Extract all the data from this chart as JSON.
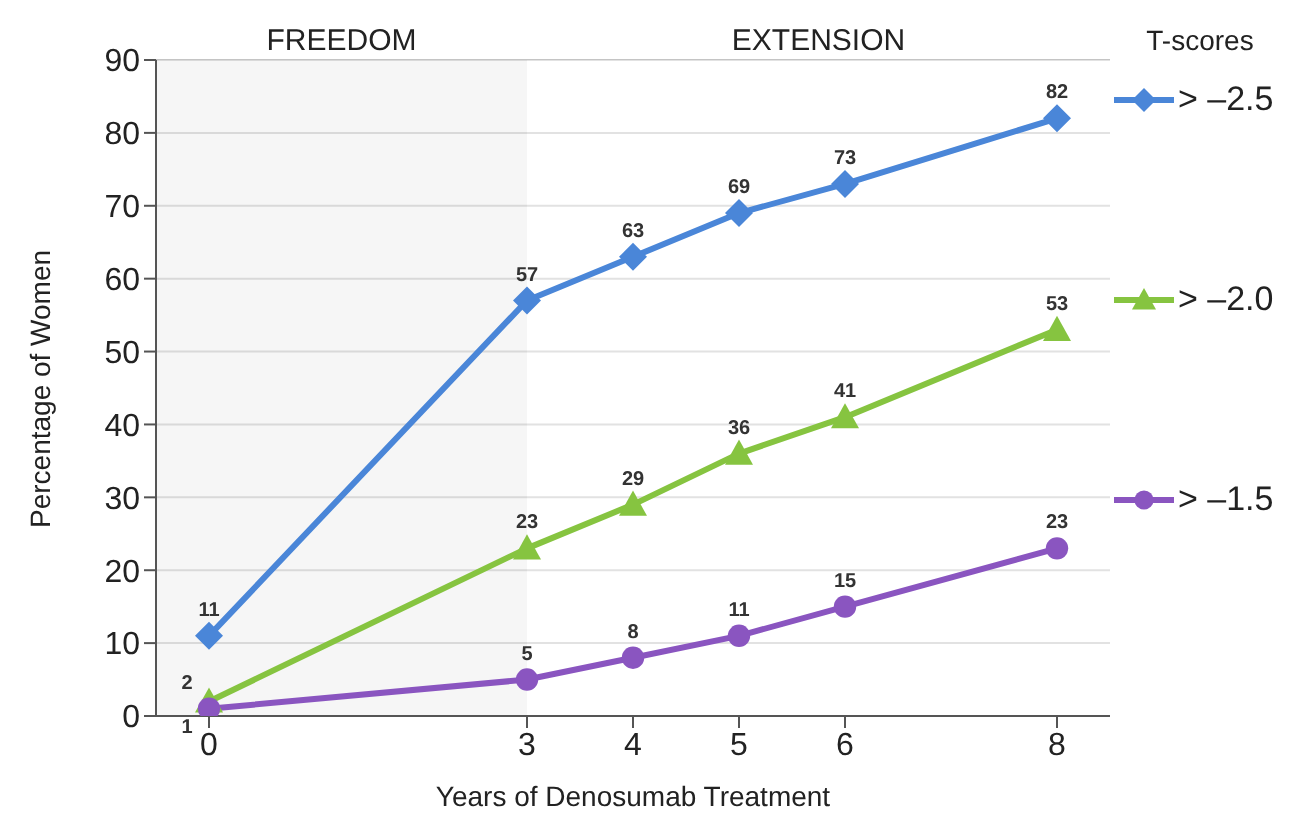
{
  "chart_data": {
    "type": "line",
    "xlabel": "Years of Denosumab Treatment",
    "ylabel": "Percentage of Women",
    "legend_title": "T-scores",
    "x": [
      0,
      3,
      4,
      5,
      6,
      8
    ],
    "series": [
      {
        "name": "> –2.5",
        "color": "#4a86d8",
        "marker": "diamond",
        "values": [
          11,
          57,
          63,
          69,
          73,
          82
        ]
      },
      {
        "name": "> –2.0",
        "color": "#86c440",
        "marker": "triangle",
        "values": [
          2,
          23,
          29,
          36,
          41,
          53
        ]
      },
      {
        "name": "> –1.5",
        "color": "#8a55c0",
        "marker": "circle",
        "values": [
          1,
          5,
          8,
          11,
          15,
          23
        ]
      }
    ],
    "xlim": [
      -0.5,
      8.5
    ],
    "xticks": [
      0,
      3,
      4,
      5,
      6,
      8
    ],
    "ylim": [
      0,
      90
    ],
    "yticks": [
      0,
      10,
      20,
      30,
      40,
      50,
      60,
      70,
      80,
      90
    ],
    "bands": [
      {
        "axis": "x",
        "from": -0.5,
        "to": 3,
        "label": "FREEDOM",
        "color": "#eeeeee"
      },
      {
        "axis": "x",
        "from": 3,
        "to": 8.5,
        "label": "EXTENSION",
        "color": "#ffffff"
      }
    ],
    "grid": "y",
    "legend": "right",
    "data_labels": true,
    "line_style": "solid"
  }
}
